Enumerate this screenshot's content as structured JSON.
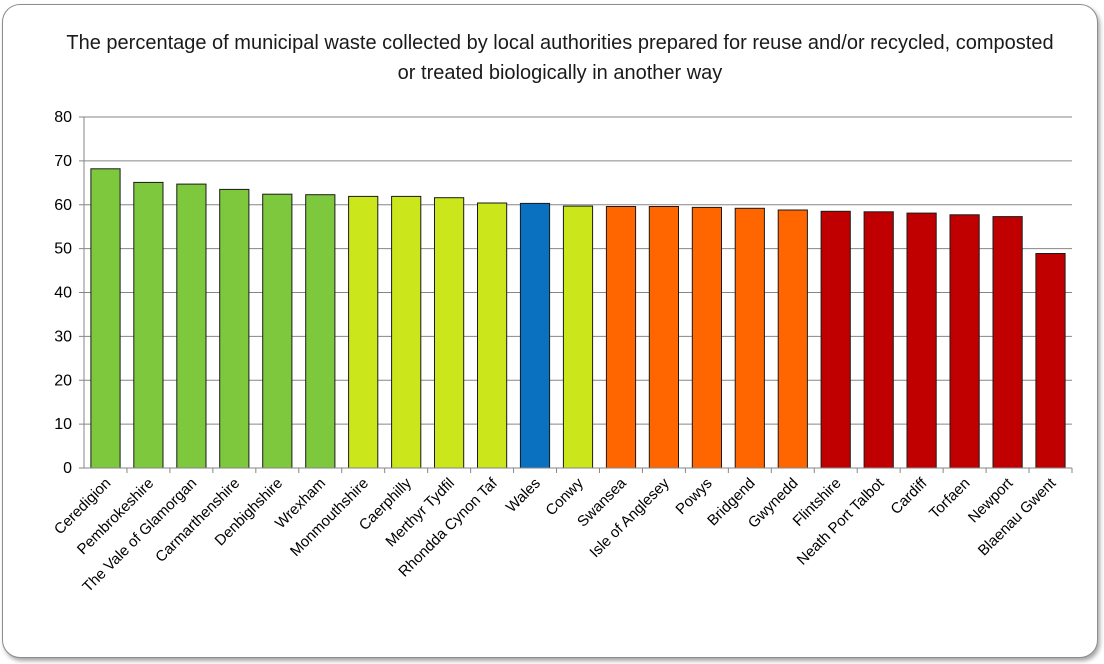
{
  "chart_data": {
    "type": "bar",
    "title": "The percentage of municipal waste collected by local authorities prepared for reuse and/or recycled, composted or treated biologically in another  way",
    "xlabel": "",
    "ylabel": "",
    "ylim": [
      0,
      80
    ],
    "yticks": [
      0,
      10,
      20,
      30,
      40,
      50,
      60,
      70,
      80
    ],
    "grid": true,
    "legend": "none",
    "categories": [
      "Ceredigion",
      "Pembrokeshire",
      "The Vale of Glamorgan",
      "Carmarthenshire",
      "Denbighshire",
      "Wrexham",
      "Monmouthshire",
      "Caerphilly",
      "Merthyr Tydfil",
      "Rhondda Cynon Taf",
      "Wales",
      "Conwy",
      "Swansea",
      "Isle of Anglesey",
      "Powys",
      "Bridgend",
      "Gwynedd",
      "Flintshire",
      "Neath Port Talbot",
      "Cardiff",
      "Torfaen",
      "Newport",
      "Blaenau Gwent"
    ],
    "values": [
      68.2,
      65.1,
      64.7,
      63.5,
      62.4,
      62.3,
      61.9,
      61.9,
      61.6,
      60.4,
      60.3,
      59.7,
      59.6,
      59.6,
      59.4,
      59.2,
      58.8,
      58.5,
      58.4,
      58.1,
      57.7,
      57.3,
      48.9
    ],
    "bar_colors": [
      "#7dc83c",
      "#7dc83c",
      "#7dc83c",
      "#7dc83c",
      "#7dc83c",
      "#7dc83c",
      "#cbe61a",
      "#cbe61a",
      "#cbe61a",
      "#cbe61a",
      "#0a70c0",
      "#cbe61a",
      "#ff6600",
      "#ff6600",
      "#ff6600",
      "#ff6600",
      "#ff6600",
      "#c00000",
      "#c00000",
      "#c00000",
      "#c00000",
      "#c00000",
      "#c00000"
    ]
  }
}
